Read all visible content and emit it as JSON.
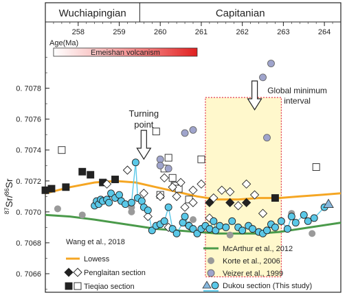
{
  "chart_data": {
    "type": "scatter",
    "stages": [
      {
        "name": "Wuchiapingian",
        "from": 257.2,
        "to": 259.5
      },
      {
        "name": "Capitanian",
        "from": 259.5,
        "to": 264.4
      }
    ],
    "xaxis": {
      "label": "Age(Ma)",
      "ticks": [
        258,
        259,
        260,
        261,
        262,
        263,
        264
      ],
      "lim": [
        257.2,
        264.4
      ],
      "reversed": false
    },
    "yaxis": {
      "label": "87Sr/86Sr",
      "label_sup1": "87",
      "label_base1": "Sr/",
      "label_sup2": "86",
      "label_base2": "Sr",
      "ticks": [
        "0. 7066",
        "0. 7068",
        "0. 7070",
        "0. 7072",
        "0. 7074",
        "0. 7076",
        "0. 7078"
      ],
      "tick_values": [
        0.7066,
        0.7068,
        0.707,
        0.7072,
        0.7074,
        0.7076,
        0.7078
      ],
      "lim": [
        0.70648,
        0.70806
      ]
    },
    "volcanism_bar": {
      "label": "Emeishan volcanism",
      "from": 257.4,
      "to": 260.9
    },
    "annotations": {
      "turning_point": {
        "line1": "Turning",
        "line2": "point",
        "x": 259.6
      },
      "global_minimum": {
        "line1": "Global minimum",
        "line2": "interval",
        "x": 262.3
      },
      "min_box": {
        "from": 261.1,
        "to": 262.95,
        "y_from": 0.70658,
        "y_to": 0.70774
      }
    },
    "legend_title": "Wang et al., 2018",
    "series": [
      {
        "name": "Lowess",
        "kind": "line",
        "color": "#f5a623",
        "x": [
          257.2,
          257.8,
          258.4,
          258.9,
          259.4,
          259.9,
          260.4,
          260.9,
          261.4,
          261.9,
          262.4,
          262.9,
          263.4,
          263.9,
          264.4
        ],
        "y": [
          0.70712,
          0.70716,
          0.70719,
          0.7072,
          0.70719,
          0.70716,
          0.70713,
          0.7071,
          0.70708,
          0.70708,
          0.70709,
          0.70709,
          0.7071,
          0.70711,
          0.70712
        ]
      },
      {
        "name": "McArthur et al., 2012",
        "kind": "line",
        "color": "#4a9a4a",
        "x": [
          257.2,
          257.8,
          258.4,
          258.9,
          259.4,
          259.9,
          260.4,
          260.9,
          261.4,
          261.9,
          262.4,
          262.9,
          263.4,
          263.9,
          264.4
        ],
        "y": [
          0.70698,
          0.70697,
          0.70695,
          0.70693,
          0.70691,
          0.70689,
          0.70688,
          0.70687,
          0.70686,
          0.70686,
          0.70686,
          0.70687,
          0.70689,
          0.70691,
          0.70693
        ]
      },
      {
        "name": "Penglaitan section",
        "kind": "diamond",
        "filled_x": [
          261.2,
          261.7,
          262.1
        ],
        "filled_y": [
          0.70706,
          0.70706,
          0.70706
        ],
        "open_x": [
          258.7,
          259.2,
          259.6,
          260.1,
          260.3,
          260.5,
          260.8,
          260.8,
          261.0,
          261.2,
          261.5,
          261.7,
          261.9,
          262.1,
          262.3,
          262.5,
          260.0,
          260.4,
          260.6,
          261.3,
          260.2,
          260.7,
          259.7
        ],
        "open_y": [
          0.70718,
          0.70727,
          0.70712,
          0.70722,
          0.70716,
          0.70719,
          0.70714,
          0.70706,
          0.70718,
          0.70696,
          0.70714,
          0.70713,
          0.70704,
          0.70718,
          0.70711,
          0.70699,
          0.7071,
          0.7071,
          0.70703,
          0.70709,
          0.7069,
          0.70691,
          0.70697
        ]
      },
      {
        "name": "Tieqiao section",
        "kind": "square",
        "filled_x": [
          257.2,
          257.35,
          257.7,
          258.1,
          258.3,
          258.6,
          258.9,
          262.8
        ],
        "filled_y": [
          0.70714,
          0.70715,
          0.70716,
          0.70726,
          0.70724,
          0.70719,
          0.70721,
          0.70709
        ],
        "open_x": [
          257.6,
          259.9,
          260.1,
          260.2,
          260.3,
          260.35,
          260.7,
          261.0,
          263.8,
          260.0,
          260.45
        ],
        "open_y": [
          0.7074,
          0.70752,
          0.70728,
          0.70735,
          0.70722,
          0.70717,
          0.70708,
          0.70734,
          0.70729,
          0.70711,
          0.70715
        ]
      },
      {
        "name": "Veizer et al., 1999",
        "kind": "circle_purple",
        "color": "#9fa4cc",
        "x": [
          260.0,
          260.2,
          260.0,
          260.6,
          260.8,
          262.5,
          262.7,
          262.6
        ],
        "y": [
          0.70734,
          0.70728,
          0.7073,
          0.70751,
          0.70753,
          0.70787,
          0.70796,
          0.70748
        ]
      },
      {
        "name": "Korte et al., 2006",
        "kind": "circle_gray",
        "color": "#9a9a9a",
        "x": [
          257.5,
          258.1,
          259.3,
          259.3,
          260.8,
          261.7,
          263.2,
          263.7
        ],
        "y": [
          0.70702,
          0.70698,
          0.70703,
          0.707,
          0.70695,
          0.70685,
          0.70699,
          0.70686
        ]
      },
      {
        "name": "Dukou section (This study)",
        "kind": "circle_cyan",
        "color": "#5ac8e8",
        "tri_color": "#86b7dd",
        "x": [
          258.4,
          258.45,
          258.5,
          258.55,
          258.6,
          258.7,
          258.75,
          258.8,
          258.9,
          259.0,
          259.05,
          259.15,
          259.3,
          259.4,
          259.45,
          259.55,
          259.6,
          259.7,
          259.8,
          259.9,
          260.0,
          260.1,
          260.2,
          260.3,
          260.4,
          260.55,
          260.6,
          260.7,
          260.8,
          260.9,
          261.0,
          261.1,
          261.2,
          261.3,
          261.35,
          261.45,
          261.6,
          261.75,
          261.9,
          262.0,
          262.15,
          262.25,
          262.4,
          262.5,
          262.6,
          262.7,
          262.8,
          262.95,
          263.1,
          263.2,
          263.3,
          263.5,
          263.6,
          263.75,
          264.0
        ],
        "y": [
          0.70704,
          0.70707,
          0.70705,
          0.70708,
          0.70707,
          0.70708,
          0.70706,
          0.70712,
          0.70709,
          0.70711,
          0.70707,
          0.70705,
          0.70706,
          0.70732,
          0.70709,
          0.70707,
          0.70703,
          0.70701,
          0.70688,
          0.70691,
          0.70692,
          0.70694,
          0.70703,
          0.70689,
          0.70686,
          0.70693,
          0.70697,
          0.70691,
          0.70689,
          0.70686,
          0.70689,
          0.70691,
          0.70689,
          0.70694,
          0.70688,
          0.70691,
          0.7069,
          0.70694,
          0.7069,
          0.70688,
          0.70691,
          0.70689,
          0.70687,
          0.70686,
          0.70688,
          0.70692,
          0.7069,
          0.70694,
          0.70689,
          0.70697,
          0.70693,
          0.70698,
          0.70694,
          0.70696,
          0.70703
        ]
      }
    ],
    "triangle_point": {
      "x": 264.1,
      "y": 0.70705
    },
    "legend": {
      "left": [
        "Lowess",
        "Penglaitan section",
        "Tieqiao section"
      ],
      "right": [
        "McArthur et al., 2012",
        "Korte et al., 2006",
        "Veizer et al., 1999",
        "Dukou section (This study)"
      ]
    }
  }
}
